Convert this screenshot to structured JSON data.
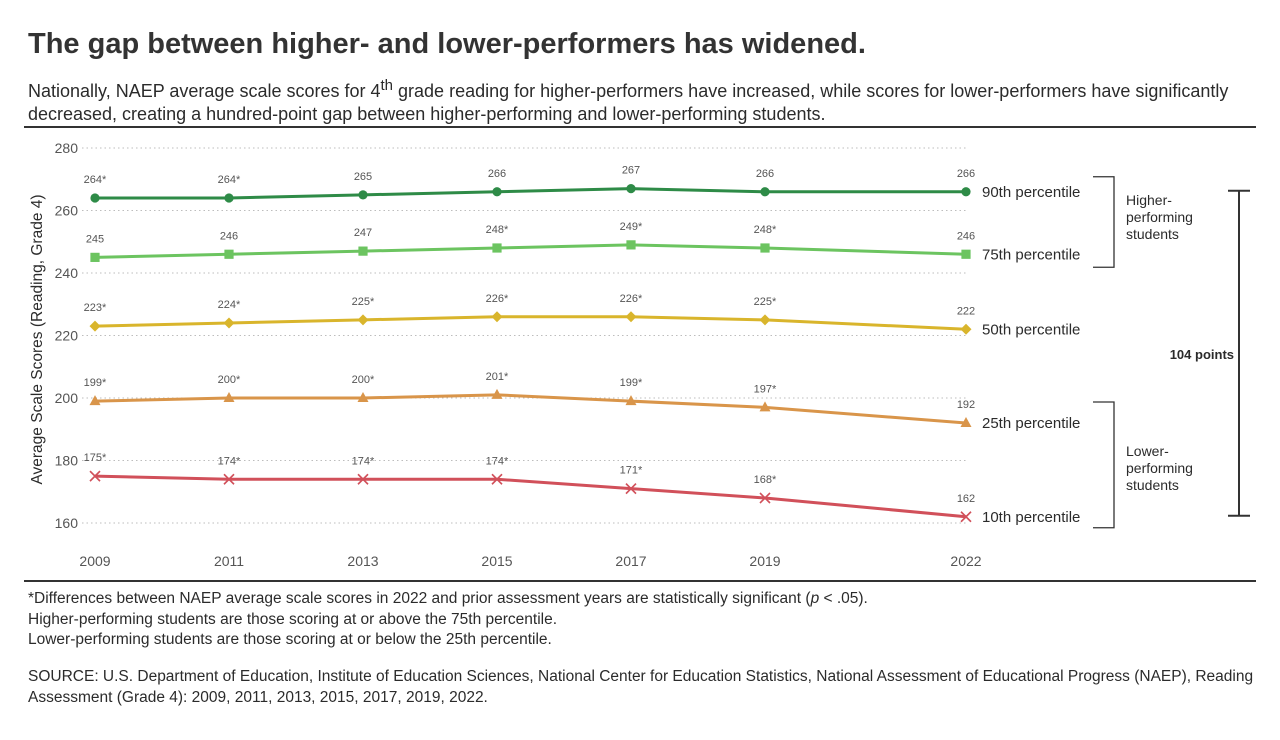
{
  "title": "The gap between higher- and lower-performers has widened.",
  "subtitle": {
    "before": "Nationally, NAEP average scale scores for 4",
    "sup": "th",
    "after": " grade reading for higher-performers have increased, while scores for lower-performers have significantly decreased, creating a hundred-point gap between higher-performing and lower-performing students."
  },
  "chart_data": {
    "type": "line",
    "title": "",
    "xlabel": "",
    "ylabel": "Average Scale Scores (Reading, Grade 4)",
    "x": [
      "2009",
      "2011",
      "2013",
      "2015",
      "2017",
      "2019",
      "2022"
    ],
    "ylim": [
      160,
      280
    ],
    "yticks": [
      160,
      180,
      200,
      220,
      240,
      260,
      280
    ],
    "grid": true,
    "series": [
      {
        "name": "90th percentile",
        "color": "#2e8b47",
        "marker": "circle",
        "values": [
          264,
          264,
          265,
          266,
          267,
          266,
          266
        ],
        "labels": [
          "264*",
          "264*",
          "265",
          "266",
          "267",
          "266",
          "266"
        ]
      },
      {
        "name": "75th percentile",
        "color": "#6cc460",
        "marker": "square",
        "values": [
          245,
          246,
          247,
          248,
          249,
          248,
          246
        ],
        "labels": [
          "245",
          "246",
          "247",
          "248*",
          "249*",
          "248*",
          "246"
        ]
      },
      {
        "name": "50th percentile",
        "color": "#d9b52c",
        "marker": "diamond",
        "values": [
          223,
          224,
          225,
          226,
          226,
          225,
          222
        ],
        "labels": [
          "223*",
          "224*",
          "225*",
          "226*",
          "226*",
          "225*",
          "222"
        ]
      },
      {
        "name": "25th percentile",
        "color": "#d9954a",
        "marker": "triangle",
        "values": [
          199,
          200,
          200,
          201,
          199,
          197,
          192
        ],
        "labels": [
          "199*",
          "200*",
          "200*",
          "201*",
          "199*",
          "197*",
          "192"
        ]
      },
      {
        "name": "10th percentile",
        "color": "#d1505a",
        "marker": "x",
        "values": [
          175,
          174,
          174,
          174,
          171,
          168,
          162
        ],
        "labels": [
          "175*",
          "174*",
          "174*",
          "174*",
          "171*",
          "168*",
          "162"
        ]
      }
    ],
    "annotations": {
      "higher_group": "Higher-performing students",
      "lower_group": "Lower-performing students",
      "gap": "104 points"
    }
  },
  "notes": {
    "line1_before": "*Differences between NAEP average scale scores in 2022 and prior assessment years are statistically significant (",
    "line1_p": "p",
    "line1_after": " < .05).",
    "line2": "Higher-performing students are those scoring at or above the 75th percentile.",
    "line3": "Lower-performing students are those scoring at or below the 25th percentile."
  },
  "source": "SOURCE: U.S. Department of Education, Institute of Education Sciences, National Center for Education Statistics, National Assessment of Educational Progress (NAEP), Reading Assessment (Grade 4): 2009, 2011, 2013, 2015, 2017, 2019, 2022."
}
